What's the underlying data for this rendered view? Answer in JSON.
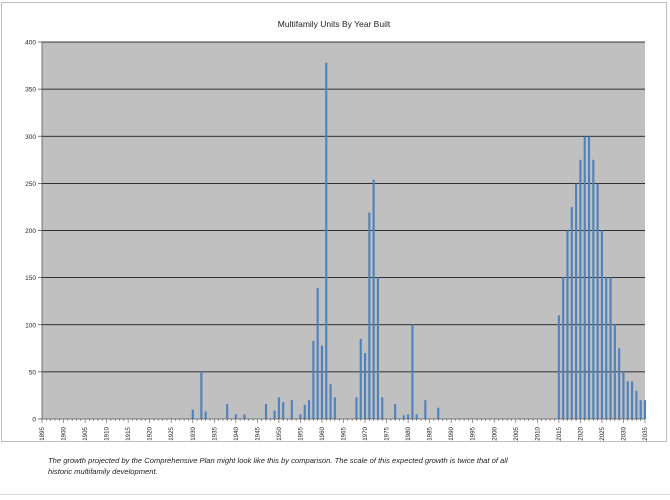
{
  "chart_data": {
    "type": "bar",
    "title": "Multifamily Units By Year Built",
    "xlabel": "",
    "ylabel": "",
    "x_range": [
      1895,
      2035
    ],
    "ylim": [
      0,
      400
    ],
    "y_ticks": [
      "0",
      "50",
      "100",
      "150",
      "200",
      "250",
      "300",
      "350",
      "400"
    ],
    "x_ticks": [
      "1895",
      "1900",
      "1905",
      "1910",
      "1915",
      "1920",
      "1925",
      "1930",
      "1935",
      "1940",
      "1945",
      "1950",
      "1955",
      "1960",
      "1965",
      "1970",
      "1975",
      "1980",
      "1985",
      "1990",
      "1995",
      "2000",
      "2005",
      "2010",
      "2015",
      "2020",
      "2025",
      "2030",
      "2035"
    ],
    "grid": true,
    "legend": "none",
    "colors": {
      "bar": "#4f81bd",
      "plot_background": "#c0c0c0",
      "gridline": "#000000"
    },
    "series": [
      {
        "x": [
          1930,
          1932,
          1933,
          1938,
          1940,
          1942,
          1947,
          1949,
          1950,
          1951,
          1953,
          1955,
          1956,
          1957,
          1958,
          1959,
          1960,
          1961,
          1962,
          1963,
          1968,
          1969,
          1970,
          1971,
          1972,
          1973,
          1974,
          1977,
          1979,
          1980,
          1981,
          1982,
          1984,
          1987,
          2015,
          2016,
          2017,
          2018,
          2019,
          2020,
          2021,
          2022,
          2023,
          2024,
          2025,
          2026,
          2027,
          2028,
          2029,
          2030,
          2031,
          2032,
          2033,
          2034,
          2035
        ],
        "values": [
          10,
          50,
          8,
          16,
          5,
          5,
          16,
          9,
          23,
          18,
          20,
          5,
          15,
          20,
          83,
          139,
          78,
          378,
          37,
          23,
          23,
          85,
          70,
          219,
          254,
          150,
          23,
          16,
          4,
          5,
          100,
          5,
          20,
          12,
          110,
          150,
          200,
          225,
          250,
          275,
          300,
          300,
          275,
          250,
          200,
          150,
          150,
          100,
          75,
          50,
          40,
          40,
          30,
          20,
          20
        ]
      }
    ]
  },
  "caption": "The growth projected by the Comprehensive Plan might look like this by comparison. The scale of this expected growth is twice that of all historic multifamily development."
}
